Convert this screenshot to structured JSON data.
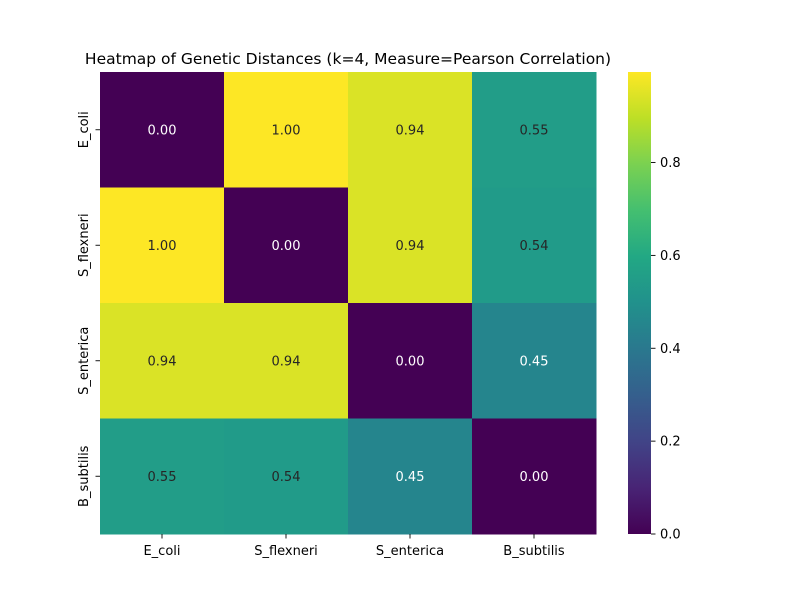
{
  "chart_data": {
    "type": "heatmap",
    "title": "Heatmap of Genetic Distances (k=4, Measure=Pearson Correlation)",
    "row_labels": [
      "E_coli",
      "S_flexneri",
      "S_enterica",
      "B_subtilis"
    ],
    "col_labels": [
      "E_coli",
      "S_flexneri",
      "S_enterica",
      "B_subtilis"
    ],
    "values": [
      [
        0.0,
        1.0,
        0.94,
        0.55
      ],
      [
        1.0,
        0.0,
        0.94,
        0.54
      ],
      [
        0.94,
        0.94,
        0.0,
        0.45
      ],
      [
        0.55,
        0.54,
        0.45,
        0.0
      ]
    ],
    "cell_text": [
      [
        "0.00",
        "1.00",
        "0.94",
        "0.55"
      ],
      [
        "1.00",
        "0.00",
        "0.94",
        "0.54"
      ],
      [
        "0.94",
        "0.94",
        "0.00",
        "0.45"
      ],
      [
        "0.55",
        "0.54",
        "0.45",
        "0.00"
      ]
    ],
    "colormap": "viridis",
    "vmin": 0.0,
    "vmax": 0.995,
    "colorbar": {
      "ticks": [
        0.0,
        0.2,
        0.4,
        0.6,
        0.8
      ],
      "tick_labels": [
        "0.0",
        "0.2",
        "0.4",
        "0.6",
        "0.8"
      ]
    },
    "xlabel": "",
    "ylabel": ""
  }
}
